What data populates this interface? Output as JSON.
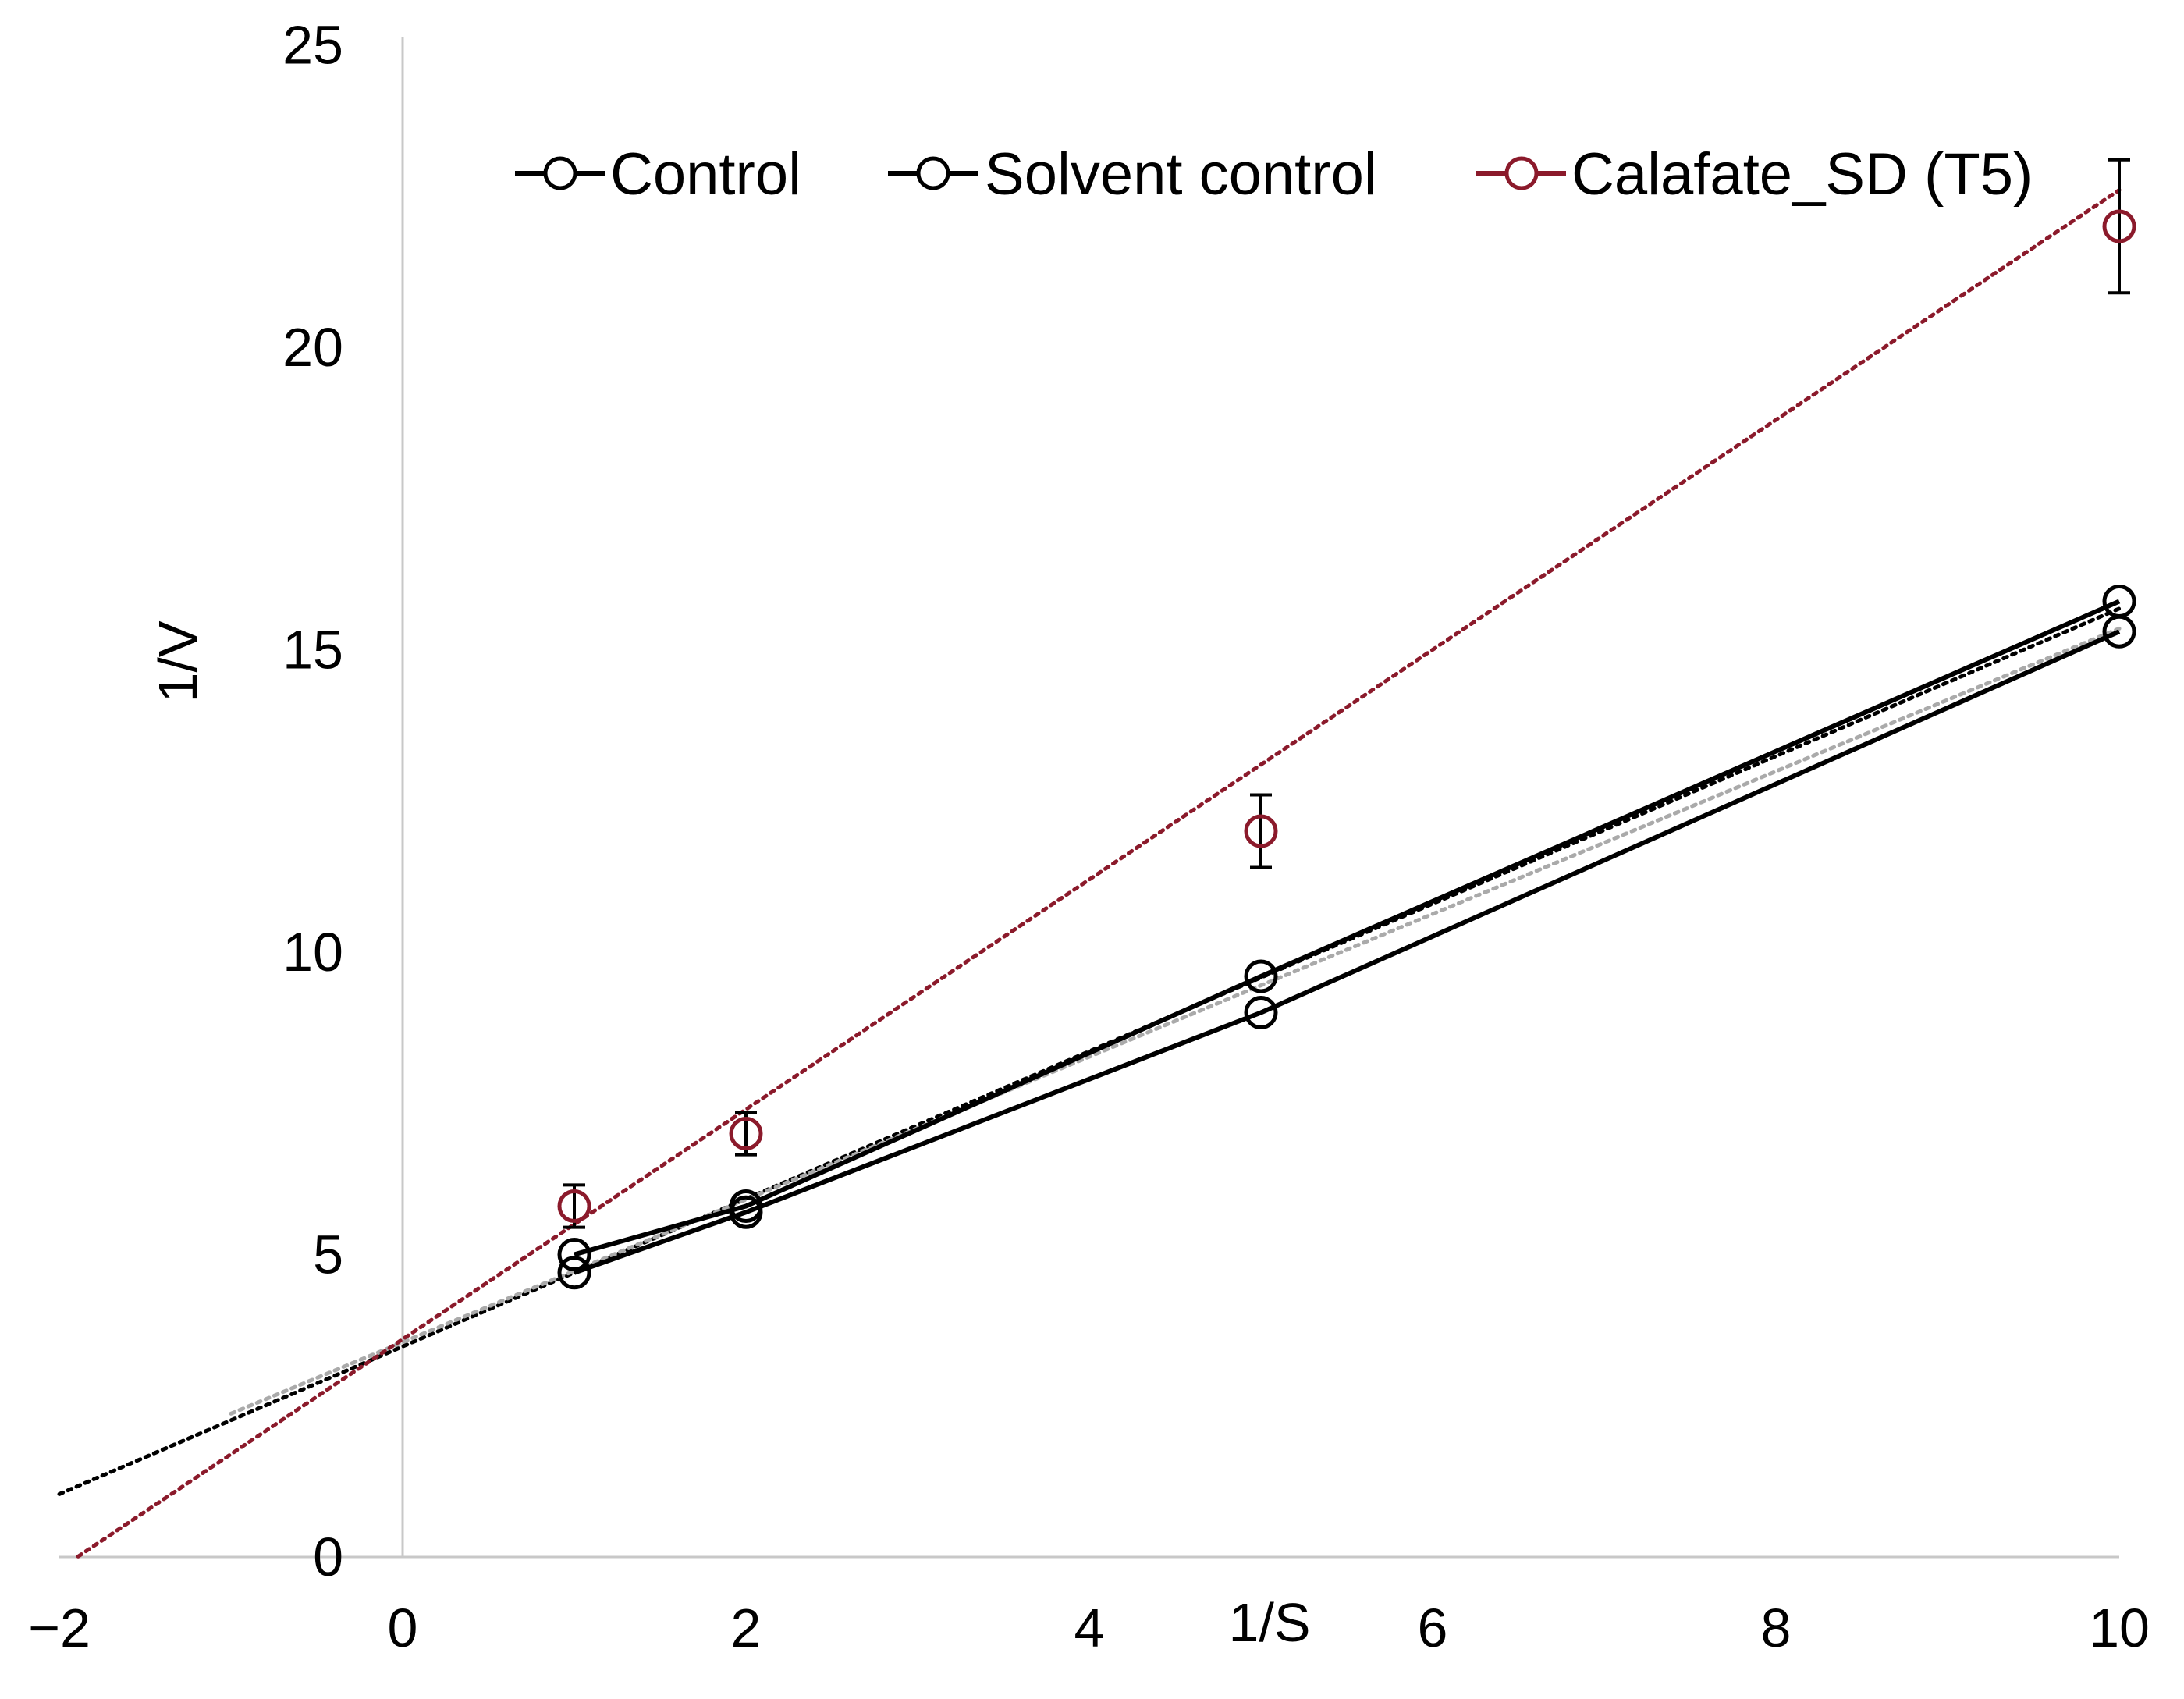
{
  "chart_data": {
    "type": "line",
    "xlabel": "1/S",
    "ylabel": "1/V",
    "xlim": [
      -2,
      10
    ],
    "ylim": [
      0,
      25
    ],
    "x_ticks": [
      "−2",
      "0",
      "2",
      "4",
      "6",
      "8",
      "10"
    ],
    "y_ticks": [
      "0",
      "5",
      "10",
      "15",
      "20",
      "25"
    ],
    "legend_position": "top",
    "series": [
      {
        "name": "Control",
        "color": "#000000",
        "line_style": "solid",
        "x": [
          1,
          2,
          5,
          10
        ],
        "y": [
          5.0,
          5.8,
          9.6,
          15.8
        ],
        "trendline": {
          "slope": 1.22,
          "intercept": 3.48,
          "x_from": -2,
          "x_to": 10,
          "color": "#000000"
        }
      },
      {
        "name": "Solvent control",
        "color": "#000000",
        "line_style": "solid",
        "x": [
          1,
          2,
          5,
          10
        ],
        "y": [
          4.7,
          5.7,
          9.0,
          15.3
        ],
        "trendline": {
          "slope": 1.18,
          "intercept": 3.55,
          "x_from": -1,
          "x_to": 10,
          "color": "#aaaaaa"
        }
      },
      {
        "name": "Calafate_SD (T5)",
        "color": "#8b1a2b",
        "line_style": "none",
        "x": [
          1,
          2,
          5,
          10
        ],
        "y": [
          5.8,
          7.0,
          12.0,
          22.0
        ],
        "error": [
          0.35,
          0.35,
          0.6,
          1.1
        ],
        "trendline": {
          "slope": 1.9,
          "intercept": 3.6,
          "x_from": -1.89,
          "x_to": 10,
          "color": "#8b1a2b"
        }
      }
    ]
  }
}
